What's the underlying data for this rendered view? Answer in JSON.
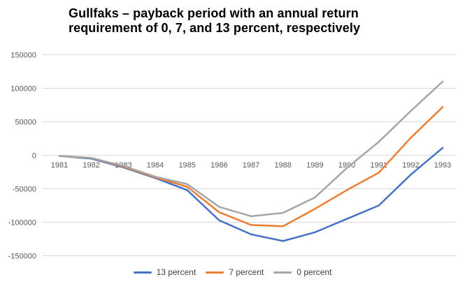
{
  "title": {
    "line1": "Gullfaks – payback period with an annual return",
    "line2": "requirement of 0, 7, and 13 percent, respectively"
  },
  "chart_data": {
    "type": "line",
    "x": [
      1981,
      1982,
      1983,
      1984,
      1985,
      1986,
      1987,
      1988,
      1989,
      1990,
      1991,
      1992,
      1993
    ],
    "series": [
      {
        "name": "13 percent",
        "color": "#4472C4",
        "values": [
          -1000,
          -5000,
          -18000,
          -34000,
          -52000,
          -97000,
          -118000,
          -128000,
          -115000,
          -95000,
          -75000,
          -29000,
          11000
        ]
      },
      {
        "name": "7 percent",
        "color": "#ED7D31",
        "values": [
          -1000,
          -4000,
          -17000,
          -33000,
          -47000,
          -85000,
          -104000,
          -106000,
          -80000,
          -52000,
          -26000,
          26000,
          72000
        ]
      },
      {
        "name": "0 percent",
        "color": "#A5A5A5",
        "values": [
          -1000,
          -4000,
          -16000,
          -32000,
          -43000,
          -77000,
          -91000,
          -86000,
          -63000,
          -19000,
          20000,
          66000,
          110000
        ]
      }
    ],
    "ylim": [
      -150000,
      150000
    ],
    "ytick_step": 50000,
    "yticks": [
      150000,
      100000,
      50000,
      0,
      -50000,
      -100000,
      -150000
    ],
    "xlabel": "",
    "ylabel": "",
    "grid": "horizontal-only",
    "gridline_color": "#D9D9D9",
    "axis_label_color": "#595959",
    "legend_position": "bottom",
    "background": "#FFFFFF"
  }
}
